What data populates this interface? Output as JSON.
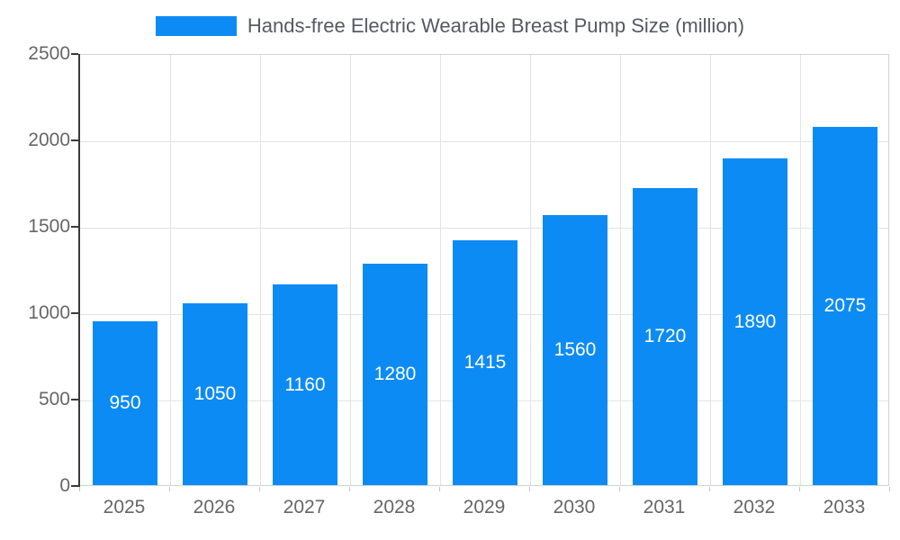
{
  "chart_data": {
    "type": "bar",
    "title": "Hands-free Electric Wearable Breast Pump Size (million)",
    "categories": [
      "2025",
      "2026",
      "2027",
      "2028",
      "2029",
      "2030",
      "2031",
      "2032",
      "2033"
    ],
    "values": [
      950,
      1050,
      1160,
      1280,
      1415,
      1560,
      1720,
      1890,
      2075
    ],
    "xlabel": "",
    "ylabel": "",
    "ylim": [
      0,
      2500
    ],
    "yticks": [
      0,
      500,
      1000,
      1500,
      2000,
      2500
    ],
    "grid": true,
    "legend_position": "top",
    "bar_color": "#0d8bf5",
    "value_label_color": "#ffffff"
  }
}
